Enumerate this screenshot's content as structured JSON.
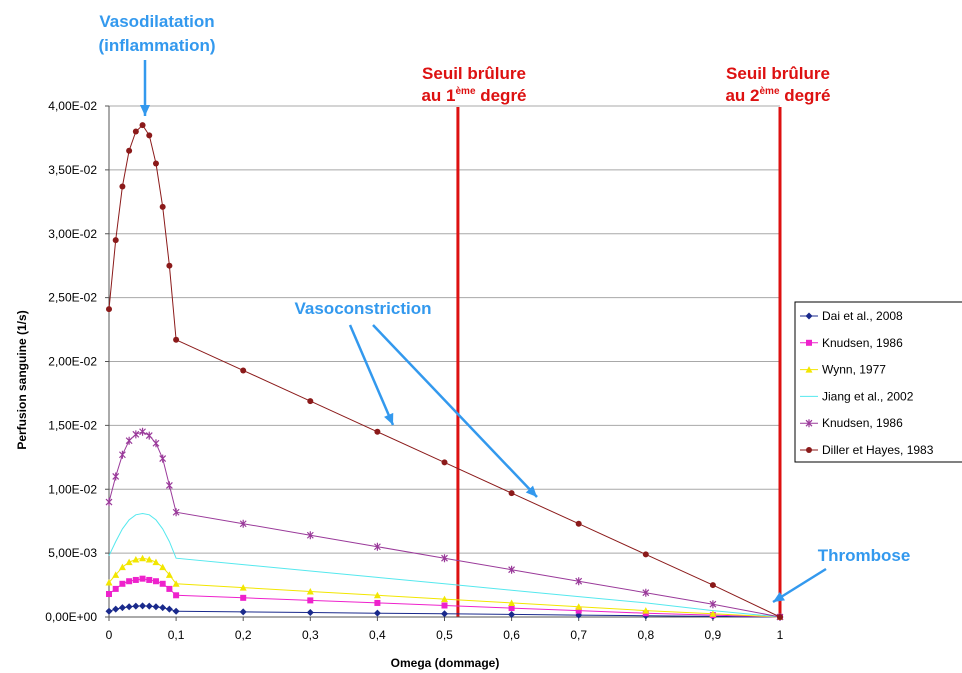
{
  "chart_data": {
    "type": "line",
    "xlabel": "Omega (dommage)",
    "ylabel": "Perfusion sanguine (1/s)",
    "xlim": [
      0,
      1
    ],
    "ylim": [
      0,
      0.04
    ],
    "grid": "horizontal",
    "legend_position": "right",
    "x_ticks": [
      "0",
      "0,1",
      "0,2",
      "0,3",
      "0,4",
      "0,5",
      "0,6",
      "0,7",
      "0,8",
      "0,9",
      "1"
    ],
    "y_ticks": [
      "0,00E+00",
      "5,00E-03",
      "1,00E-02",
      "1,50E-02",
      "2,00E-02",
      "2,50E-02",
      "3,00E-02",
      "3,50E-02",
      "4,00E-02"
    ],
    "x": [
      0,
      0.01,
      0.02,
      0.03,
      0.04,
      0.05,
      0.06,
      0.07,
      0.08,
      0.09,
      0.1,
      0.2,
      0.3,
      0.4,
      0.5,
      0.6,
      0.7,
      0.8,
      0.9,
      1.0
    ],
    "series": [
      {
        "name": "Dai et al., 2008",
        "color": "#1a2a8c",
        "marker": "diamond",
        "values": [
          0.00045,
          0.00062,
          0.00073,
          0.0008,
          0.00085,
          0.00087,
          0.00085,
          0.0008,
          0.00073,
          0.00062,
          0.00045,
          0.0004,
          0.00035,
          0.0003,
          0.00025,
          0.0002,
          0.00015,
          0.0001,
          5e-05,
          0.0
        ]
      },
      {
        "name": "Knudsen, 1986",
        "color": "#ee22cc",
        "marker": "square",
        "values": [
          0.0018,
          0.0022,
          0.0026,
          0.0028,
          0.0029,
          0.003,
          0.0029,
          0.0028,
          0.0026,
          0.0022,
          0.0017,
          0.0015,
          0.0013,
          0.0011,
          0.0009,
          0.0007,
          0.0005,
          0.0003,
          0.00015,
          0.0
        ]
      },
      {
        "name": "Wynn, 1977",
        "color": "#f2e600",
        "marker": "triangle",
        "values": [
          0.0027,
          0.0033,
          0.0039,
          0.0043,
          0.0045,
          0.0046,
          0.0045,
          0.0043,
          0.0039,
          0.0033,
          0.0026,
          0.0023,
          0.002,
          0.0017,
          0.0014,
          0.0011,
          0.0008,
          0.0005,
          0.00025,
          0.0
        ]
      },
      {
        "name": "Jiang et al., 2002",
        "color": "#55e8ee",
        "marker": "none",
        "values": [
          0.0048,
          0.0059,
          0.0069,
          0.0076,
          0.008,
          0.0081,
          0.008,
          0.0076,
          0.0069,
          0.0059,
          0.0046,
          0.0041,
          0.0036,
          0.0031,
          0.0026,
          0.0021,
          0.0016,
          0.0011,
          0.0005,
          0.0
        ]
      },
      {
        "name": "Knudsen, 1986",
        "color": "#9a3a9a",
        "marker": "star",
        "values": [
          0.009,
          0.011,
          0.0127,
          0.0138,
          0.0143,
          0.0145,
          0.0142,
          0.0136,
          0.0124,
          0.0103,
          0.0082,
          0.0073,
          0.0064,
          0.0055,
          0.0046,
          0.0037,
          0.0028,
          0.0019,
          0.001,
          0.0
        ]
      },
      {
        "name": "Diller et Hayes, 1983",
        "color": "#8b1a1a",
        "marker": "circle",
        "values": [
          0.0241,
          0.0295,
          0.0337,
          0.0365,
          0.038,
          0.0385,
          0.0377,
          0.0355,
          0.0321,
          0.0275,
          0.0217,
          0.0193,
          0.0169,
          0.0145,
          0.0121,
          0.0097,
          0.0073,
          0.0049,
          0.0025,
          0.0
        ]
      }
    ],
    "vertical_lines": [
      {
        "x": 0.52,
        "color": "#dd1111",
        "line1": "Seuil brûlure",
        "line2a": "au 1",
        "sup": "ème",
        "line2b": " degré"
      },
      {
        "x": 1.0,
        "color": "#dd1111",
        "line1": "Seuil brûlure",
        "line2a": "au 2",
        "sup": "ème",
        "line2b": " degré"
      }
    ],
    "annotations": {
      "vasodilatation_line1": "Vasodilatation",
      "vasodilatation_line2": "(inflammation)",
      "vasoconstriction": "Vasoconstriction",
      "thrombose": "Thrombose",
      "color": "#3399ee"
    }
  }
}
